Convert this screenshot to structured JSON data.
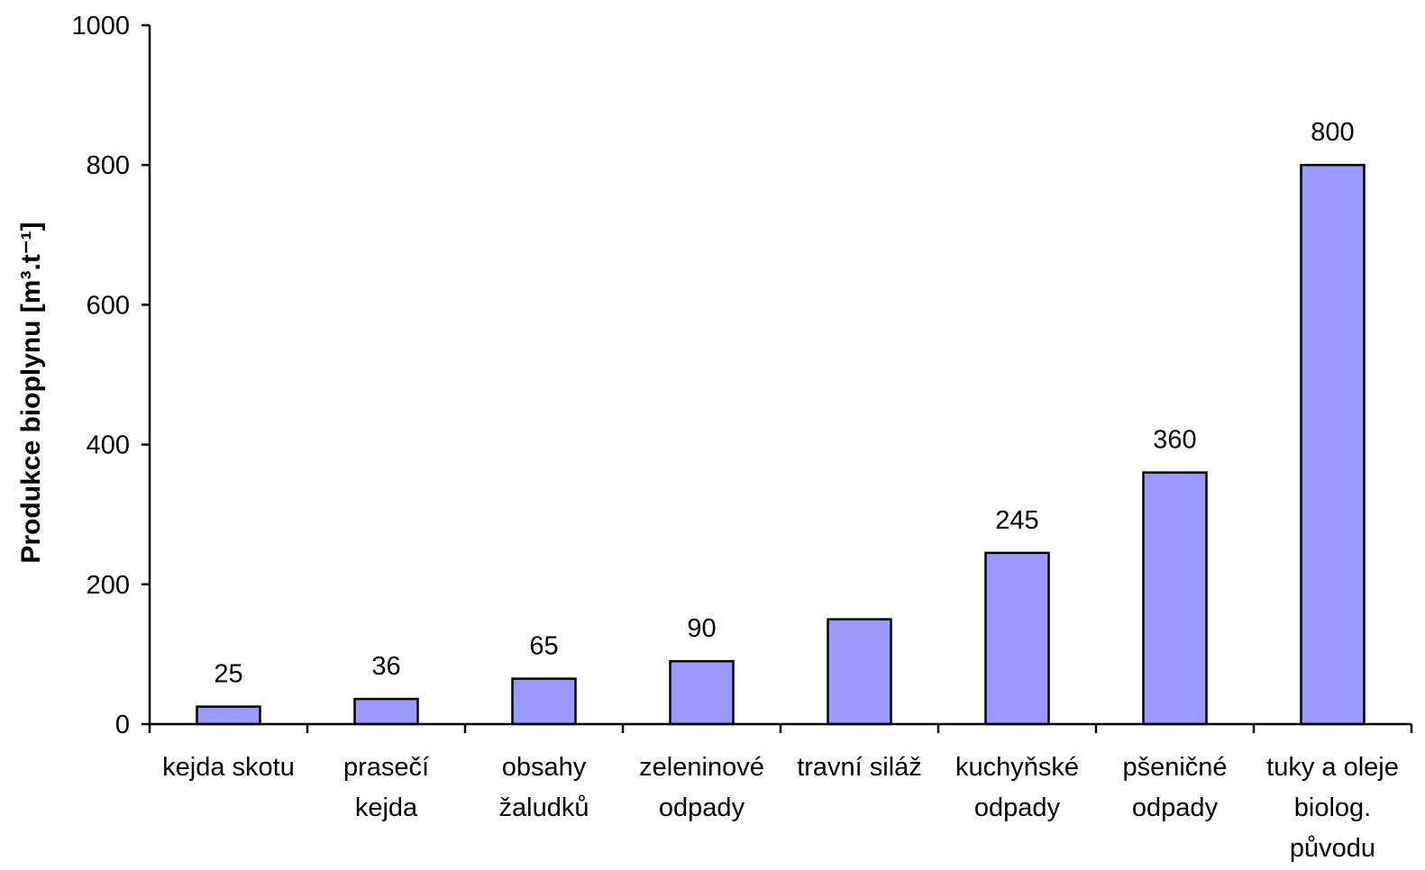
{
  "chart_data": {
    "type": "bar",
    "title": "",
    "xlabel": "",
    "ylabel": "Produkce bioplynu [m³.t⁻¹]",
    "ylim": [
      0,
      1000
    ],
    "yticks": [
      0,
      200,
      400,
      600,
      800,
      1000
    ],
    "grid": false,
    "legend": "none",
    "bar_color": "#9999ff",
    "categories": [
      [
        "kejda skotu"
      ],
      [
        "prasečí",
        "kejda"
      ],
      [
        "obsahy",
        "žaludků"
      ],
      [
        "zeleninové",
        "odpady"
      ],
      [
        "travní siláž"
      ],
      [
        "kuchyňské",
        "odpady"
      ],
      [
        "pšeničné",
        "odpady"
      ],
      [
        "tuky a oleje",
        "biolog.",
        "původu"
      ]
    ],
    "values": [
      25,
      36,
      65,
      90,
      150,
      245,
      360,
      800
    ],
    "data_labels": [
      "25",
      "36",
      "65",
      "90",
      "",
      "245",
      "360",
      "800"
    ]
  }
}
